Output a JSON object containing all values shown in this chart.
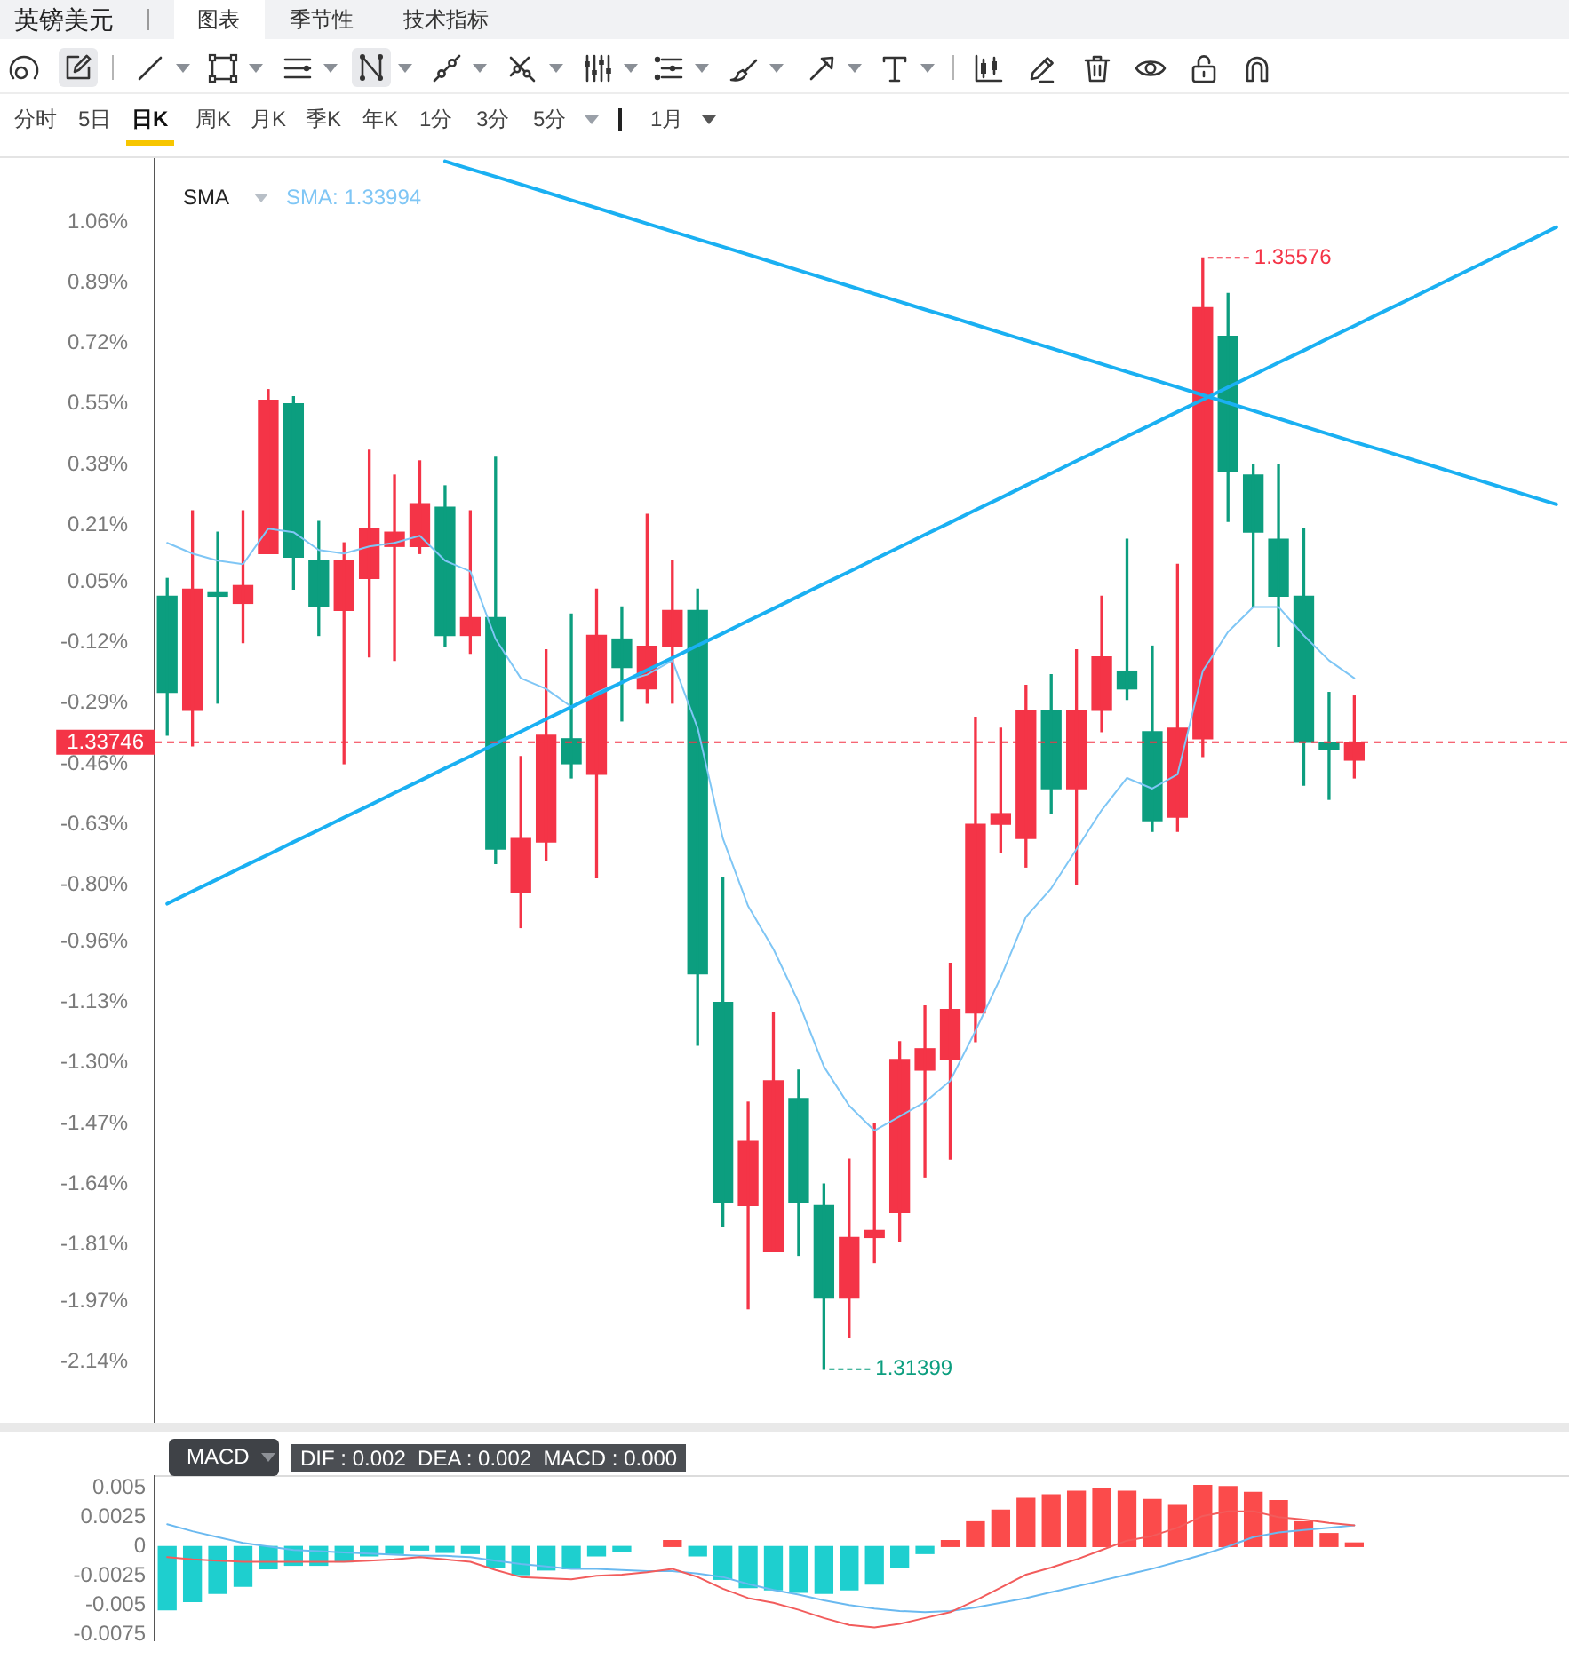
{
  "chart_data": [
    {
      "type": "candlestick",
      "title": "英镑美元",
      "legend_title": "SMA",
      "legend": "top left",
      "marker": "none",
      "categories": [
        null,
        null,
        null,
        null,
        null,
        null,
        null,
        null,
        null,
        null,
        null,
        null,
        null,
        null,
        null,
        null,
        null,
        null,
        null,
        null,
        null,
        null,
        null,
        null,
        null,
        null,
        null,
        null,
        null,
        null,
        null,
        null,
        null,
        null,
        null,
        null,
        null,
        null,
        null,
        null,
        null,
        null,
        null,
        null,
        null,
        null,
        null,
        null,
        null,
        null,
        null,
        null,
        null,
        null,
        null,
        null
      ],
      "ohlc": [
        [
          0.01,
          0.06,
          -0.38,
          -0.26
        ],
        [
          -0.31,
          0.25,
          -0.41,
          0.03
        ],
        [
          0.02,
          0.19,
          -0.29,
          0.01
        ],
        [
          -0.01,
          0.25,
          -0.12,
          0.04
        ],
        [
          0.13,
          0.59,
          0.13,
          0.56
        ],
        [
          0.55,
          0.57,
          0.03,
          0.12
        ],
        [
          0.11,
          0.22,
          -0.1,
          -0.02
        ],
        [
          -0.03,
          0.16,
          -0.46,
          0.11
        ],
        [
          0.06,
          0.42,
          -0.16,
          0.2
        ],
        [
          0.15,
          0.35,
          -0.17,
          0.19
        ],
        [
          0.15,
          0.39,
          0.13,
          0.27
        ],
        [
          0.26,
          0.32,
          -0.13,
          -0.1
        ],
        [
          -0.1,
          0.25,
          -0.15,
          -0.05
        ],
        [
          -0.05,
          0.4,
          -0.74,
          -0.7
        ],
        [
          -0.82,
          -0.44,
          -0.92,
          -0.67
        ],
        [
          -0.68,
          -0.14,
          -0.73,
          -0.38
        ],
        [
          -0.39,
          -0.04,
          -0.5,
          -0.46
        ],
        [
          -0.49,
          0.03,
          -0.78,
          -0.1
        ],
        [
          -0.11,
          -0.02,
          -0.34,
          -0.19
        ],
        [
          -0.25,
          0.24,
          -0.29,
          -0.13
        ],
        [
          -0.13,
          0.11,
          -0.29,
          -0.03
        ],
        [
          -0.03,
          0.03,
          -1.25,
          -1.05
        ],
        [
          -1.13,
          -0.78,
          -1.76,
          -1.69
        ],
        [
          -1.7,
          -1.41,
          -1.99,
          -1.52
        ],
        [
          -1.83,
          -1.16,
          -1.83,
          -1.35
        ],
        [
          -1.4,
          -1.32,
          -1.84,
          -1.69
        ],
        [
          -1.7,
          -1.64,
          -2.16,
          -1.96
        ],
        [
          -1.96,
          -1.57,
          -2.07,
          -1.79
        ],
        [
          -1.79,
          -1.47,
          -1.86,
          -1.77
        ],
        [
          -1.72,
          -1.24,
          -1.8,
          -1.29
        ],
        [
          -1.32,
          -1.14,
          -1.62,
          -1.26
        ],
        [
          -1.29,
          -1.02,
          -1.57,
          -1.15
        ],
        [
          -1.16,
          -0.33,
          -1.24,
          -0.63
        ],
        [
          -0.63,
          -0.36,
          -0.71,
          -0.6
        ],
        [
          -0.67,
          -0.24,
          -0.75,
          -0.31
        ],
        [
          -0.31,
          -0.21,
          -0.6,
          -0.53
        ],
        [
          -0.53,
          -0.14,
          -0.8,
          -0.31
        ],
        [
          -0.31,
          0.01,
          -0.37,
          -0.16
        ],
        [
          -0.2,
          0.17,
          -0.28,
          -0.25
        ],
        [
          -0.37,
          -0.13,
          -0.65,
          -0.62
        ],
        [
          -0.61,
          0.1,
          -0.65,
          -0.36
        ],
        [
          -0.39,
          0.96,
          -0.44,
          0.82
        ],
        [
          0.74,
          0.86,
          0.22,
          0.36
        ],
        [
          0.35,
          0.38,
          -0.02,
          0.19
        ],
        [
          0.17,
          0.38,
          -0.13,
          0.01
        ],
        [
          0.01,
          0.2,
          -0.52,
          -0.4
        ],
        [
          -0.4,
          -0.26,
          -0.56,
          -0.42
        ],
        [
          -0.45,
          -0.27,
          -0.5,
          -0.4
        ],
        null,
        null,
        null,
        null,
        null,
        null,
        null,
        null
      ],
      "colors": [
        "#0c9e7f",
        "#f43447",
        "#0c9e7f",
        "#f43447",
        "#f43447",
        "#0c9e7f",
        "#0c9e7f",
        "#f43447",
        "#f43447",
        "#f43447",
        "#f43447",
        "#0c9e7f",
        "#f43447",
        "#0c9e7f",
        "#f43447",
        "#f43447",
        "#0c9e7f",
        "#f43447",
        "#0c9e7f",
        "#f43447",
        "#f43447",
        "#0c9e7f",
        "#0c9e7f",
        "#f43447",
        "#f43447",
        "#0c9e7f",
        "#0c9e7f",
        "#f43447",
        "#f43447",
        "#f43447",
        "#f43447",
        "#f43447",
        "#f43447",
        "#f43447",
        "#f43447",
        "#0c9e7f",
        "#f43447",
        "#f43447",
        "#0c9e7f",
        "#0c9e7f",
        "#f43447",
        "#f43447",
        "#0c9e7f",
        "#0c9e7f",
        "#0c9e7f",
        "#0c9e7f",
        "#0c9e7f",
        "#f43447",
        null,
        null,
        null,
        null,
        null,
        null,
        null,
        null
      ],
      "series": [
        {
          "type": "line",
          "name": "SMA: 1.33994",
          "color": "#7fc6f5",
          "values": [
            0.16,
            0.13,
            0.11,
            0.1,
            0.2,
            0.19,
            0.14,
            0.13,
            0.15,
            0.16,
            0.18,
            0.11,
            0.08,
            -0.11,
            -0.22,
            -0.25,
            -0.3,
            -0.26,
            -0.23,
            -0.21,
            -0.17,
            -0.36,
            -0.67,
            -0.86,
            -0.98,
            -1.13,
            -1.31,
            -1.42,
            -1.49,
            -1.45,
            -1.41,
            -1.35,
            -1.21,
            -1.06,
            -0.89,
            -0.81,
            -0.7,
            -0.59,
            -0.5,
            -0.53,
            -0.49,
            -0.2,
            -0.09,
            -0.02,
            -0.02,
            -0.1,
            -0.17,
            -0.22,
            null,
            null,
            null,
            null,
            null,
            null,
            null,
            null
          ]
        },
        {
          "type": "line",
          "color": "#1ab0f2",
          "values": [
            -0.853,
            -0.818,
            -0.784,
            -0.749,
            -0.715,
            -0.68,
            -0.646,
            -0.611,
            -0.577,
            -0.542,
            -0.508,
            -0.473,
            -0.439,
            -0.404,
            -0.37,
            -0.335,
            -0.301,
            -0.266,
            -0.232,
            -0.197,
            -0.163,
            -0.128,
            -0.094,
            -0.059,
            -0.025,
            0.01,
            0.045,
            0.079,
            0.114,
            0.148,
            0.183,
            0.217,
            0.252,
            0.286,
            0.321,
            0.355,
            0.39,
            0.424,
            0.459,
            0.493,
            0.528,
            0.562,
            0.597,
            0.631,
            0.666,
            0.7,
            0.735,
            0.769,
            0.804,
            0.838,
            0.873,
            0.908,
            0.942,
            0.977,
            1.011,
            1.046
          ]
        },
        {
          "type": "line",
          "color": "#1ab0f2",
          "values": [
            null,
            null,
            null,
            null,
            null,
            null,
            null,
            null,
            null,
            null,
            null,
            1.231,
            1.209,
            1.188,
            1.166,
            1.144,
            1.122,
            1.1,
            1.078,
            1.056,
            1.034,
            1.012,
            0.991,
            0.969,
            0.947,
            0.925,
            0.903,
            0.881,
            0.859,
            0.837,
            0.815,
            0.794,
            0.772,
            0.75,
            0.728,
            0.706,
            0.684,
            0.662,
            0.64,
            0.619,
            0.597,
            0.575,
            0.553,
            0.531,
            0.509,
            0.487,
            0.465,
            0.443,
            0.422,
            0.4,
            0.378,
            0.356,
            0.334,
            0.312,
            0.29,
            0.268
          ]
        }
      ],
      "ylim": [
        -2.31,
        1.24
      ],
      "yticks": [
        {
          "value": 1.06,
          "label": "1.06%"
        },
        {
          "value": 0.89,
          "label": "0.89%"
        },
        {
          "value": 0.72,
          "label": "0.72%"
        },
        {
          "value": 0.55,
          "label": "0.55%"
        },
        {
          "value": 0.38,
          "label": "0.38%"
        },
        {
          "value": 0.21,
          "label": "0.21%"
        },
        {
          "value": 0.05,
          "label": "0.05%"
        },
        {
          "value": -0.12,
          "label": "-0.12%"
        },
        {
          "value": -0.29,
          "label": "-0.29%"
        },
        {
          "value": -0.46,
          "label": "-0.46%"
        },
        {
          "value": -0.63,
          "label": "-0.63%"
        },
        {
          "value": -0.8,
          "label": "-0.80%"
        },
        {
          "value": -0.96,
          "label": "-0.96%"
        },
        {
          "value": -1.13,
          "label": "-1.13%"
        },
        {
          "value": -1.3,
          "label": "-1.30%"
        },
        {
          "value": -1.47,
          "label": "-1.47%"
        },
        {
          "value": -1.64,
          "label": "-1.64%"
        },
        {
          "value": -1.81,
          "label": "-1.81%"
        },
        {
          "value": -1.97,
          "label": "-1.97%"
        },
        {
          "value": -2.14,
          "label": "-2.14%"
        }
      ],
      "ref_lines": [
        {
          "axis": "y",
          "value": -0.4,
          "color": "#f43447",
          "line_style": "dashed"
        }
      ],
      "annotations": [
        "图表",
        "季节性",
        "技术指标",
        "分时",
        "5日",
        "日K",
        "周K",
        "月K",
        "季K",
        "年K",
        "1分",
        "3分",
        "5分",
        "1月",
        "1.35576",
        "1.31399",
        "1.33746"
      ]
    },
    {
      "type": "bar",
      "title": "MACD",
      "subtitle": "DIF : 0.002  DEA : 0.002  MACD : 0.000",
      "marker": "none",
      "categories": [
        null,
        null,
        null,
        null,
        null,
        null,
        null,
        null,
        null,
        null,
        null,
        null,
        null,
        null,
        null,
        null,
        null,
        null,
        null,
        null,
        null,
        null,
        null,
        null,
        null,
        null,
        null,
        null,
        null,
        null,
        null,
        null,
        null,
        null,
        null,
        null,
        null,
        null,
        null,
        null,
        null,
        null,
        null,
        null,
        null,
        null,
        null,
        null,
        null,
        null,
        null,
        null,
        null,
        null,
        null,
        null
      ],
      "series": [
        {
          "type": "bar",
          "values": [
            -0.0054,
            -0.0047,
            -0.004,
            -0.0034,
            -0.0019,
            -0.0016,
            -0.0016,
            -0.0013,
            -0.0008,
            -0.0006,
            -0.0003,
            -0.0005,
            -0.0006,
            -0.0018,
            -0.0024,
            -0.002,
            -0.0019,
            -0.0008,
            -0.0004,
            null,
            0.0005,
            -0.0008,
            -0.0028,
            -0.0035,
            -0.0037,
            -0.0039,
            -0.004,
            -0.0037,
            -0.0032,
            -0.0018,
            -0.0006,
            0.0005,
            0.0021,
            0.0031,
            0.0041,
            0.0044,
            0.0047,
            0.0049,
            0.0047,
            0.004,
            0.0035,
            0.0052,
            0.0051,
            0.0046,
            0.0039,
            0.0021,
            0.0011,
            0.0003,
            null,
            null,
            null,
            null,
            null,
            null,
            null,
            null
          ],
          "colors": [
            "#1ecfcf",
            "#1ecfcf",
            "#1ecfcf",
            "#1ecfcf",
            "#1ecfcf",
            "#1ecfcf",
            "#1ecfcf",
            "#1ecfcf",
            "#1ecfcf",
            "#1ecfcf",
            "#1ecfcf",
            "#1ecfcf",
            "#1ecfcf",
            "#1ecfcf",
            "#1ecfcf",
            "#1ecfcf",
            "#1ecfcf",
            "#1ecfcf",
            "#1ecfcf",
            "#1ecfcf",
            "#fb4b4b",
            "#1ecfcf",
            "#1ecfcf",
            "#1ecfcf",
            "#1ecfcf",
            "#1ecfcf",
            "#1ecfcf",
            "#1ecfcf",
            "#1ecfcf",
            "#1ecfcf",
            "#1ecfcf",
            "#fb4b4b",
            "#fb4b4b",
            "#fb4b4b",
            "#fb4b4b",
            "#fb4b4b",
            "#fb4b4b",
            "#fb4b4b",
            "#fb4b4b",
            "#fb4b4b",
            "#fb4b4b",
            "#fb4b4b",
            "#fb4b4b",
            "#fb4b4b",
            "#fb4b4b",
            "#fb4b4b",
            "#fb4b4b",
            "#fb4b4b",
            null,
            null,
            null,
            null,
            null,
            null,
            null,
            null
          ]
        },
        {
          "type": "line",
          "color": "#f25c5c",
          "values": [
            -0.0009,
            -0.0011,
            -0.0012,
            -0.0013,
            -0.0013,
            -0.0013,
            -0.0013,
            -0.0013,
            -0.0012,
            -0.0011,
            -0.0009,
            -0.0011,
            -0.0013,
            -0.002,
            -0.0026,
            -0.0027,
            -0.0028,
            -0.0025,
            -0.0024,
            -0.0022,
            -0.0019,
            -0.0026,
            -0.0036,
            -0.0044,
            -0.0048,
            -0.0054,
            -0.0061,
            -0.0067,
            -0.0069,
            -0.0066,
            -0.0061,
            -0.0056,
            -0.0046,
            -0.0035,
            -0.0024,
            -0.0018,
            -0.0011,
            -0.0003,
            0.0005,
            0.0009,
            0.0016,
            0.0026,
            0.003,
            0.003,
            0.0025,
            0.0023,
            0.002,
            0.0018,
            null,
            null,
            null,
            null,
            null,
            null,
            null,
            null
          ]
        },
        {
          "type": "line",
          "color": "#6ab9f0",
          "values": [
            0.0019,
            0.0013,
            0.0008,
            0.0003,
            0,
            -0.0003,
            -0.0004,
            -0.0005,
            -0.0006,
            -0.0007,
            -0.0008,
            -0.0008,
            -0.0009,
            -0.0012,
            -0.0015,
            -0.0017,
            -0.0019,
            -0.0019,
            -0.002,
            -0.0021,
            -0.0021,
            -0.0023,
            -0.0026,
            -0.0032,
            -0.0037,
            -0.0041,
            -0.0046,
            -0.005,
            -0.0053,
            -0.0055,
            -0.0056,
            -0.0055,
            -0.0052,
            -0.0048,
            -0.0044,
            -0.0039,
            -0.0034,
            -0.0029,
            -0.0024,
            -0.0019,
            -0.0013,
            -0.0007,
            0,
            0.0008,
            0.0012,
            0.0014,
            0.0016,
            0.0018,
            null,
            null,
            null,
            null,
            null,
            null,
            null,
            null
          ]
        }
      ],
      "ylim": [
        -0.008,
        0.006
      ],
      "yticks": [
        0.005,
        0.0025,
        0,
        -0.0025,
        -0.005,
        -0.0075
      ]
    }
  ]
}
